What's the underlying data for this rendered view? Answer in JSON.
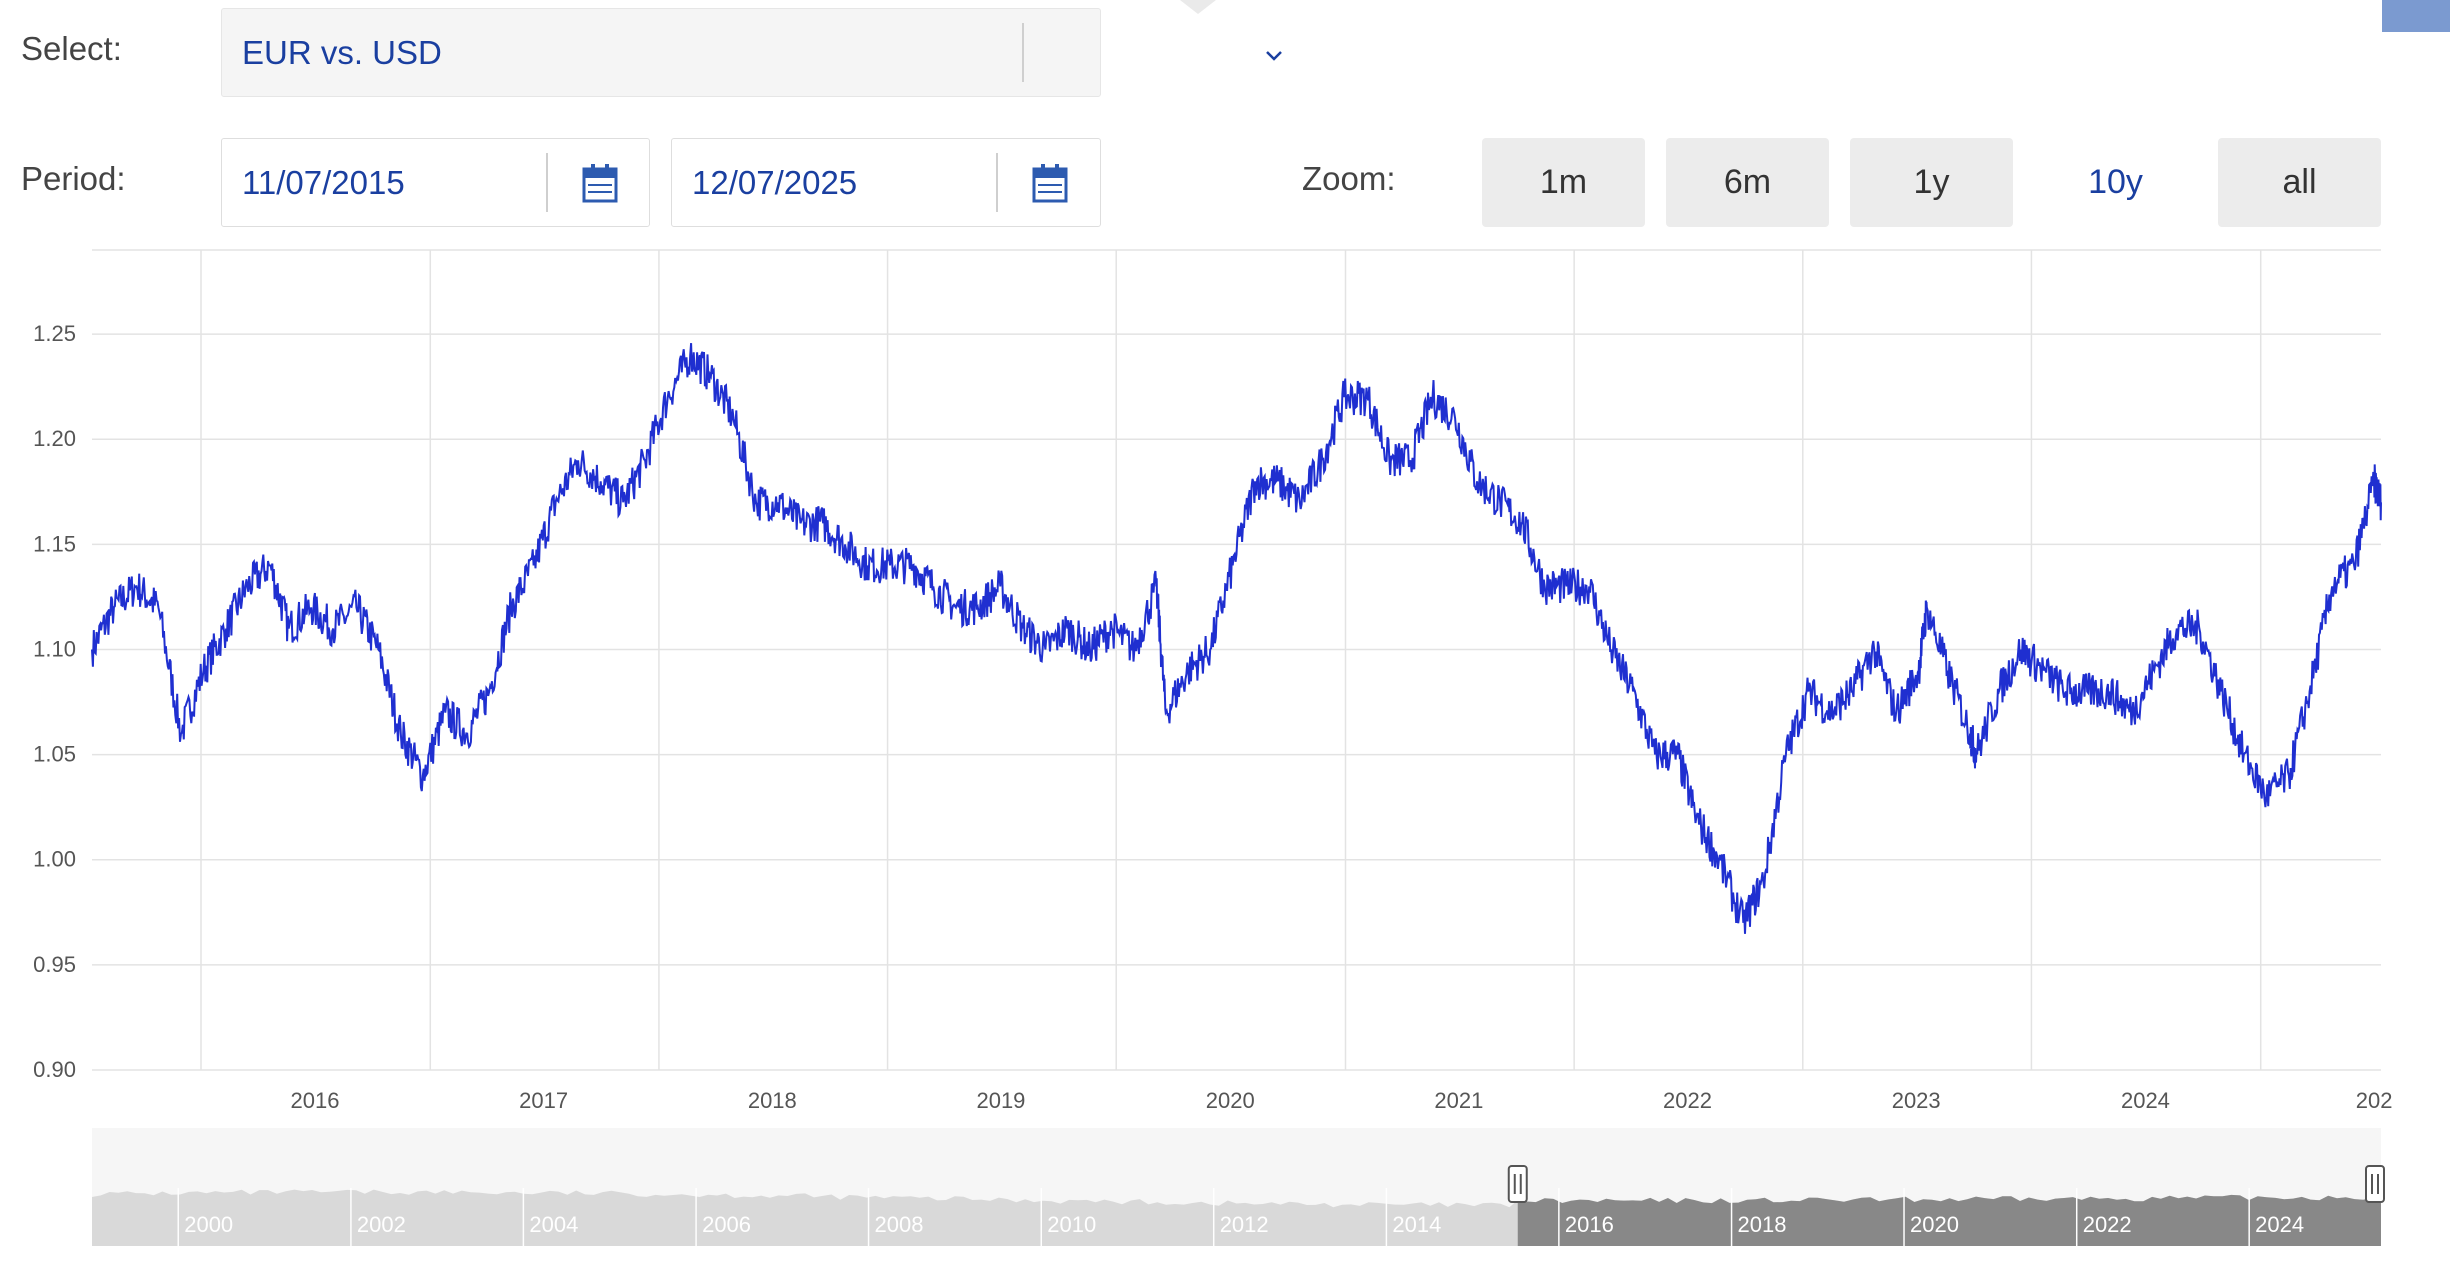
{
  "controls": {
    "select_label": "Select:",
    "pair_value": "EUR vs. USD",
    "period_label": "Period:",
    "start_date": "11/07/2015",
    "end_date": "12/07/2025",
    "zoom_label": "Zoom:",
    "zoom_options": [
      "1m",
      "6m",
      "1y",
      "10y",
      "all"
    ],
    "zoom_active": "10y",
    "icons": [
      "chevron-down-icon",
      "calendar-icon",
      "calendar-icon"
    ]
  },
  "colors": {
    "series": "#1f2fd0",
    "accent": "#1a3fa0",
    "grid": "#e3e3e3",
    "navigator_bg": "#d9d9d9",
    "navigator_selected": "#888888"
  },
  "chart_data": {
    "type": "line",
    "xlabel": "",
    "ylabel": "",
    "ylim": [
      0.9,
      1.29
    ],
    "x_range": [
      "2015-07-11",
      "2025-07-12"
    ],
    "y_ticks": [
      "0.90",
      "0.95",
      "1.00",
      "1.05",
      "1.10",
      "1.15",
      "1.20",
      "1.25"
    ],
    "x_ticks": [
      "2016",
      "2017",
      "2018",
      "2019",
      "2020",
      "2021",
      "2022",
      "2023",
      "2024",
      "202"
    ],
    "grid": true,
    "series": [
      {
        "x": [
          "2015-07-11",
          "2015-08-15",
          "2015-09-20",
          "2015-10-25",
          "2015-11-30",
          "2016-01-05",
          "2016-02-10",
          "2016-03-15",
          "2016-04-20",
          "2016-05-20",
          "2016-06-25",
          "2016-07-30",
          "2016-09-05",
          "2016-10-10",
          "2016-11-15",
          "2016-12-20",
          "2017-01-25",
          "2017-03-01",
          "2017-04-05",
          "2017-05-10",
          "2017-06-15",
          "2017-07-20",
          "2017-08-25",
          "2017-09-30",
          "2017-11-05",
          "2017-12-10",
          "2018-01-15",
          "2018-02-20",
          "2018-03-25",
          "2018-04-30",
          "2018-06-05",
          "2018-07-10",
          "2018-08-15",
          "2018-09-20",
          "2018-10-25",
          "2018-11-30",
          "2019-01-05",
          "2019-02-10",
          "2019-03-15",
          "2019-04-20",
          "2019-05-25",
          "2019-06-30",
          "2019-08-05",
          "2019-09-10",
          "2019-10-15",
          "2019-11-20",
          "2019-12-25",
          "2020-01-30",
          "2020-03-05",
          "2020-03-20",
          "2020-04-25",
          "2020-05-30",
          "2020-07-05",
          "2020-08-10",
          "2020-09-15",
          "2020-10-20",
          "2020-11-25",
          "2020-12-30",
          "2021-02-05",
          "2021-03-12",
          "2021-04-15",
          "2021-05-20",
          "2021-06-25",
          "2021-07-30",
          "2021-09-05",
          "2021-10-10",
          "2021-11-15",
          "2021-12-20",
          "2022-01-25",
          "2022-03-01",
          "2022-04-05",
          "2022-05-10",
          "2022-06-15",
          "2022-07-15",
          "2022-08-20",
          "2022-09-28",
          "2022-10-30",
          "2022-12-05",
          "2023-01-10",
          "2023-02-15",
          "2023-03-20",
          "2023-04-25",
          "2023-05-30",
          "2023-07-05",
          "2023-07-18",
          "2023-08-20",
          "2023-09-25",
          "2023-10-05",
          "2023-11-10",
          "2023-12-15",
          "2024-01-20",
          "2024-02-25",
          "2024-03-30",
          "2024-05-05",
          "2024-06-10",
          "2024-07-15",
          "2024-08-20",
          "2024-09-25",
          "2024-10-30",
          "2024-12-05",
          "2025-01-10",
          "2025-02-15",
          "2025-03-20",
          "2025-04-25",
          "2025-05-30",
          "2025-07-01",
          "2025-07-12"
        ],
        "values": [
          1.1,
          1.12,
          1.13,
          1.12,
          1.06,
          1.09,
          1.11,
          1.13,
          1.14,
          1.11,
          1.12,
          1.11,
          1.12,
          1.1,
          1.06,
          1.04,
          1.07,
          1.06,
          1.08,
          1.12,
          1.14,
          1.17,
          1.19,
          1.18,
          1.17,
          1.19,
          1.22,
          1.24,
          1.23,
          1.21,
          1.17,
          1.17,
          1.16,
          1.16,
          1.15,
          1.14,
          1.14,
          1.14,
          1.13,
          1.12,
          1.12,
          1.13,
          1.11,
          1.1,
          1.11,
          1.1,
          1.11,
          1.1,
          1.13,
          1.07,
          1.09,
          1.1,
          1.14,
          1.18,
          1.18,
          1.17,
          1.19,
          1.22,
          1.22,
          1.19,
          1.19,
          1.22,
          1.21,
          1.18,
          1.17,
          1.16,
          1.13,
          1.13,
          1.13,
          1.1,
          1.08,
          1.05,
          1.05,
          1.02,
          1.0,
          0.97,
          0.99,
          1.05,
          1.08,
          1.07,
          1.08,
          1.1,
          1.07,
          1.09,
          1.12,
          1.09,
          1.06,
          1.05,
          1.08,
          1.1,
          1.09,
          1.08,
          1.08,
          1.08,
          1.07,
          1.09,
          1.11,
          1.11,
          1.08,
          1.05,
          1.03,
          1.04,
          1.08,
          1.13,
          1.14,
          1.18,
          1.17
        ]
      }
    ]
  },
  "navigator": {
    "x_labels": [
      "2000",
      "2002",
      "2004",
      "2006",
      "2008",
      "2010",
      "2012",
      "2014",
      "2016",
      "2018",
      "2020",
      "2022",
      "2024"
    ],
    "selected_range": [
      "2015-07-11",
      "2025-07-12"
    ]
  }
}
